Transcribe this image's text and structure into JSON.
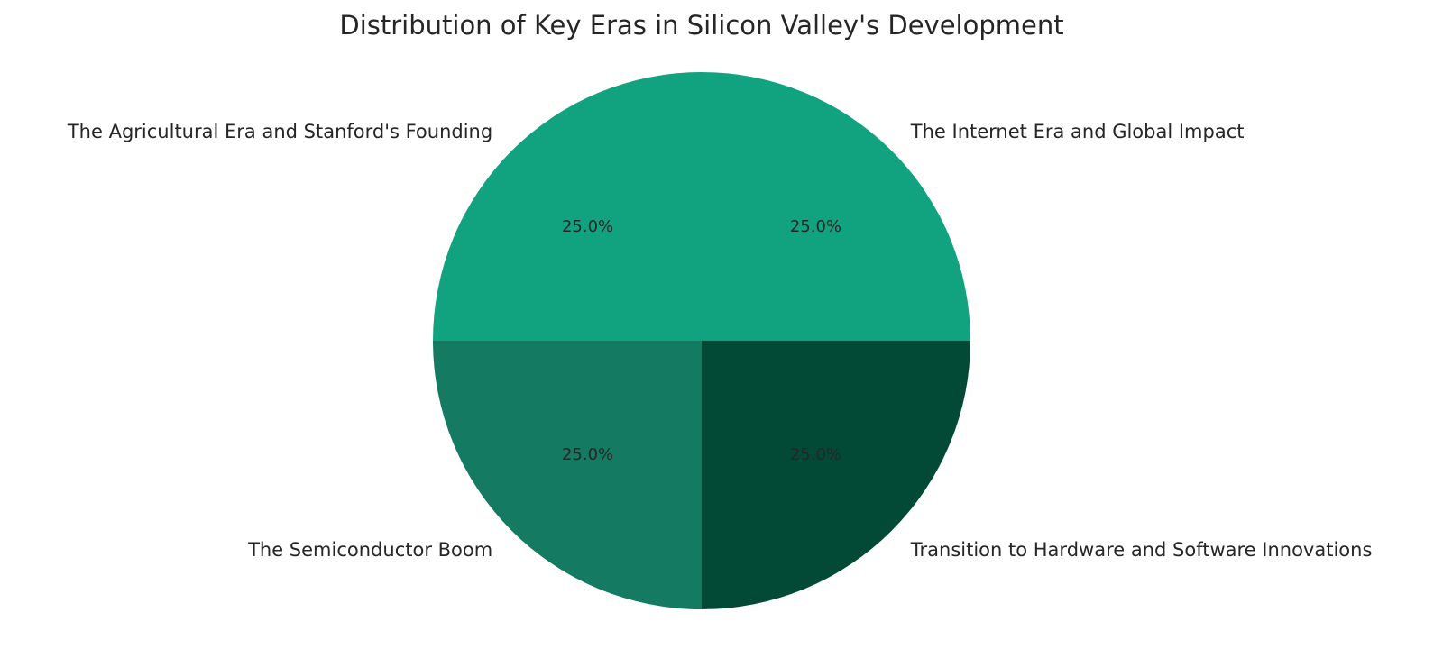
{
  "chart_data": {
    "type": "pie",
    "title": "Distribution of Key Eras in Silicon Valley's Development",
    "slices": [
      {
        "label": "The Agricultural Era and Stanford's Founding",
        "value": 25.0,
        "percent_label": "25.0%",
        "color": "#11a37f"
      },
      {
        "label": "The Semiconductor Boom",
        "value": 25.0,
        "percent_label": "25.0%",
        "color": "#147a62"
      },
      {
        "label": "Transition to Hardware and Software Innovations",
        "value": 25.0,
        "percent_label": "25.0%",
        "color": "#024936"
      },
      {
        "label": "The Internet Era and Global Impact",
        "value": 25.0,
        "percent_label": "25.0%",
        "color": "#11a37f"
      }
    ],
    "start_angle_deg": 90,
    "direction": "counterclockwise",
    "legend": "none"
  }
}
